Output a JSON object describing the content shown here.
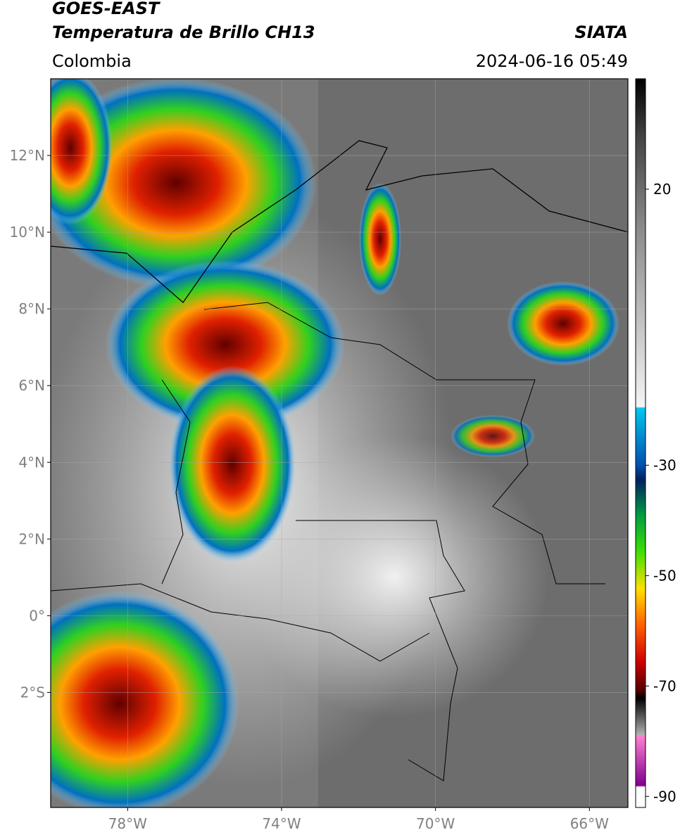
{
  "header": {
    "title": "GOES-EAST",
    "subtitle": "Temperatura de Brillo CH13",
    "source": "SIATA",
    "region": "Colombia",
    "timestamp": "2024-06-16 05:49"
  },
  "map": {
    "xlim": [
      -80,
      -65
    ],
    "ylim": [
      -5,
      14
    ],
    "lat_ticks": [
      {
        "value": 12,
        "label": "12°N"
      },
      {
        "value": 10,
        "label": "10°N"
      },
      {
        "value": 8,
        "label": "8°N"
      },
      {
        "value": 6,
        "label": "6°N"
      },
      {
        "value": 4,
        "label": "4°N"
      },
      {
        "value": 2,
        "label": "2°N"
      },
      {
        "value": 0,
        "label": "0°"
      },
      {
        "value": -2,
        "label": "2°S"
      }
    ],
    "lon_ticks": [
      {
        "value": -78,
        "label": "78°W"
      },
      {
        "value": -74,
        "label": "74°W"
      },
      {
        "value": -70,
        "label": "70°W"
      },
      {
        "value": -66,
        "label": "66°W"
      }
    ]
  },
  "colorbar": {
    "lim": [
      -92,
      40
    ],
    "ticks": [
      20,
      -30,
      -50,
      -70,
      -90
    ]
  }
}
